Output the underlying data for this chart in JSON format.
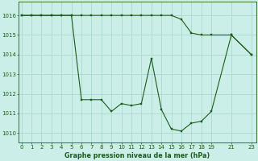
{
  "title": "Graphe pression niveau de la mer (hPa)",
  "bg_color": "#cceee8",
  "grid_color": "#aad8d0",
  "line_color": "#1a5c1a",
  "xlim": [
    -0.3,
    23.5
  ],
  "ylim": [
    1009.5,
    1016.7
  ],
  "xtick_vals": [
    0,
    1,
    2,
    3,
    4,
    5,
    6,
    7,
    8,
    9,
    10,
    11,
    12,
    13,
    14,
    15,
    16,
    17,
    18,
    19,
    21,
    23
  ],
  "xtick_labels": [
    "0",
    "1",
    "2",
    "3",
    "4",
    "5",
    "6",
    "7",
    "8",
    "9",
    "10",
    "11",
    "12",
    "13",
    "14",
    "15",
    "16",
    "17",
    "18",
    "19",
    "21",
    "23"
  ],
  "ytick_vals": [
    1010,
    1011,
    1012,
    1013,
    1014,
    1015,
    1016
  ],
  "series1_x": [
    0,
    1,
    2,
    3,
    4,
    5,
    6,
    7,
    8,
    9,
    10,
    11,
    12,
    13,
    14,
    15,
    16,
    17,
    18,
    19,
    21,
    23
  ],
  "series1_y": [
    1016,
    1016,
    1016,
    1016,
    1016,
    1016,
    1011.7,
    1011.7,
    1011.7,
    1011.1,
    1011.5,
    1011.4,
    1011.5,
    1013.8,
    1011.2,
    1010.2,
    1010.1,
    1010.5,
    1010.6,
    1011.1,
    1015.0,
    1014.0
  ],
  "series2_x": [
    0,
    1,
    2,
    3,
    4,
    5,
    6,
    7,
    8,
    9,
    10,
    11,
    12,
    13,
    14,
    15,
    16,
    17,
    18,
    19,
    21,
    23
  ],
  "series2_y": [
    1016,
    1016,
    1016,
    1016,
    1016,
    1016,
    1016,
    1016,
    1016,
    1016,
    1016,
    1016,
    1016,
    1016,
    1016,
    1016,
    1015.8,
    1015.1,
    1015.0,
    1015.0,
    1015.0,
    1014.0
  ]
}
